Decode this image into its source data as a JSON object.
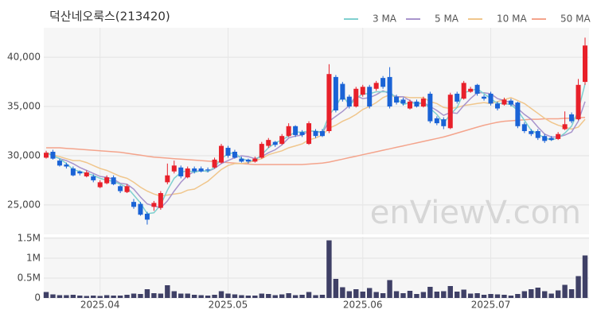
{
  "chart_data": {
    "type": "candlestick",
    "title": "덕산네오룩스(213420)",
    "watermark": "enViewV.com",
    "categories": [
      null,
      null,
      null,
      null,
      null,
      null,
      null,
      null,
      "2025.04",
      null,
      null,
      null,
      null,
      null,
      null,
      null,
      null,
      null,
      null,
      null,
      null,
      null,
      null,
      null,
      null,
      null,
      null,
      "2025.05",
      null,
      null,
      null,
      null,
      null,
      null,
      null,
      null,
      null,
      null,
      null,
      null,
      null,
      null,
      null,
      null,
      null,
      null,
      null,
      "2025.06",
      null,
      null,
      null,
      null,
      null,
      null,
      null,
      null,
      null,
      null,
      null,
      null,
      null,
      null,
      null,
      null,
      null,
      null,
      "2025.07",
      null,
      null,
      null,
      null,
      null,
      null,
      null,
      null,
      null,
      null,
      null,
      null,
      null,
      null
    ],
    "open": [
      29800,
      30400,
      29500,
      29100,
      28700,
      28400,
      27900,
      27900,
      26800,
      27200,
      27800,
      26900,
      26300,
      25300,
      25100,
      24100,
      24800,
      24700,
      27300,
      28400,
      28800,
      27800,
      28700,
      28700,
      28600,
      28800,
      29300,
      30800,
      30400,
      29700,
      29600,
      29400,
      29800,
      31000,
      31400,
      31200,
      32000,
      33000,
      32400,
      31200,
      32500,
      32500,
      32500,
      38000,
      37300,
      36000,
      35000,
      36200,
      37000,
      36800,
      37900,
      38000,
      36000,
      35700,
      34800,
      35500,
      35000,
      36300,
      33800,
      33700,
      32800,
      36300,
      35800,
      36500,
      37200,
      36000,
      36300,
      35300,
      35200,
      35600,
      35400,
      33200,
      32500,
      32500,
      32000,
      31800,
      31700,
      32700,
      34200,
      33700,
      37500
    ],
    "high": [
      30500,
      30600,
      29700,
      29300,
      28900,
      28500,
      28500,
      28100,
      27500,
      28000,
      28000,
      27000,
      27100,
      25600,
      25300,
      24300,
      25400,
      26400,
      29200,
      29500,
      29000,
      28900,
      28900,
      28900,
      28800,
      29800,
      31200,
      31000,
      30600,
      29900,
      29700,
      29900,
      31400,
      31800,
      31500,
      32200,
      33300,
      33100,
      32600,
      33500,
      32700,
      32700,
      39300,
      38200,
      37500,
      36200,
      37000,
      37200,
      37200,
      37600,
      38100,
      39000,
      36200,
      35900,
      35700,
      35700,
      36000,
      36500,
      34000,
      33900,
      36400,
      36500,
      37600,
      37000,
      37300,
      36200,
      36500,
      35500,
      35900,
      35800,
      35500,
      33400,
      32700,
      32700,
      32200,
      32000,
      32400,
      34500,
      34400,
      37800,
      42000
    ],
    "low": [
      29700,
      29600,
      28900,
      28700,
      27900,
      28000,
      27800,
      27300,
      26700,
      27100,
      27000,
      26200,
      26200,
      24600,
      23900,
      23000,
      24400,
      24500,
      27100,
      28200,
      27700,
      27700,
      28200,
      28300,
      28300,
      28700,
      29200,
      29800,
      29700,
      29300,
      29200,
      29300,
      29700,
      30800,
      30900,
      31100,
      31900,
      31900,
      31900,
      31100,
      31800,
      31900,
      32300,
      34400,
      35500,
      34800,
      34900,
      36000,
      34800,
      36600,
      36800,
      34800,
      35200,
      35100,
      34700,
      34900,
      34900,
      33300,
      33100,
      32700,
      32700,
      35300,
      35700,
      36400,
      36100,
      35600,
      35100,
      34600,
      35100,
      35000,
      32800,
      32300,
      32000,
      31600,
      31300,
      31500,
      31600,
      32600,
      33300,
      33600,
      37200
    ],
    "close": [
      30300,
      29700,
      29000,
      28900,
      28000,
      28200,
      28300,
      27500,
      27300,
      27800,
      27100,
      26400,
      26900,
      24800,
      24000,
      23500,
      25200,
      26200,
      28000,
      29000,
      27900,
      28700,
      28400,
      28400,
      28500,
      29600,
      31000,
      30000,
      29800,
      29400,
      29400,
      29700,
      31200,
      31600,
      31100,
      32000,
      33000,
      32100,
      32100,
      33300,
      32000,
      32000,
      38300,
      34600,
      35700,
      35000,
      36800,
      37000,
      35000,
      37400,
      37000,
      35000,
      35400,
      35300,
      35500,
      35000,
      35800,
      33500,
      33300,
      33000,
      36200,
      35500,
      37400,
      36800,
      36300,
      35800,
      35300,
      34800,
      35700,
      35200,
      33000,
      32500,
      32200,
      31800,
      31500,
      31600,
      32200,
      33200,
      33500,
      37200,
      41200
    ],
    "up_color": "#e8202a",
    "down_color": "#1a63d6",
    "series": [
      {
        "name": "3 MA",
        "color": "#7fd0cf",
        "values": [
          30300,
          30000,
          29700,
          29200,
          28600,
          28400,
          28200,
          28000,
          27700,
          27500,
          27400,
          27100,
          26800,
          26000,
          25200,
          24100,
          24200,
          25000,
          26500,
          27700,
          28300,
          28500,
          28300,
          28500,
          28400,
          28800,
          29700,
          30200,
          30300,
          29700,
          29500,
          29500,
          30100,
          30800,
          31300,
          31600,
          32000,
          32400,
          32400,
          32500,
          32500,
          32400,
          34100,
          35000,
          36200,
          35100,
          35800,
          36300,
          36300,
          36500,
          36500,
          36500,
          35800,
          35200,
          35400,
          35300,
          35400,
          34800,
          34200,
          33300,
          34200,
          34900,
          36400,
          36600,
          36800,
          36300,
          35800,
          35300,
          35300,
          35200,
          34600,
          33600,
          32600,
          32200,
          31800,
          31600,
          31800,
          32300,
          33000,
          34600,
          37300
        ]
      },
      {
        "name": "5 MA",
        "color": "#a894cc",
        "values": [
          30300,
          30000,
          29700,
          29500,
          29200,
          28800,
          28500,
          28200,
          27900,
          27800,
          27600,
          27200,
          27100,
          26600,
          25800,
          25100,
          24900,
          24700,
          25400,
          26400,
          27300,
          28000,
          28400,
          28500,
          28400,
          28700,
          29200,
          29500,
          29800,
          30000,
          29900,
          29700,
          29900,
          30300,
          30600,
          31100,
          31800,
          32000,
          32100,
          32500,
          32500,
          32300,
          33500,
          34000,
          34500,
          35100,
          36100,
          35800,
          35900,
          36200,
          36600,
          36300,
          36000,
          36000,
          35600,
          35200,
          35400,
          35000,
          34600,
          34100,
          34400,
          34300,
          35100,
          35800,
          36400,
          36400,
          36300,
          35800,
          35600,
          35400,
          34800,
          34200,
          33700,
          32900,
          32200,
          31900,
          31900,
          32100,
          32400,
          33500,
          35500
        ]
      },
      {
        "name": "10 MA",
        "color": "#f0c68c",
        "values": [
          30300,
          30100,
          29900,
          29700,
          29500,
          29500,
          29300,
          29000,
          28700,
          28500,
          28200,
          27900,
          27700,
          27300,
          26800,
          26400,
          26100,
          25900,
          26000,
          26100,
          26200,
          26500,
          26600,
          27000,
          27400,
          28000,
          28600,
          29000,
          29200,
          29200,
          29300,
          29500,
          29700,
          30100,
          30300,
          30500,
          30800,
          31000,
          31200,
          31600,
          31800,
          32100,
          32800,
          33100,
          33500,
          33800,
          34200,
          34700,
          35000,
          35400,
          35900,
          36200,
          35900,
          36000,
          35900,
          35900,
          35900,
          35500,
          35300,
          34900,
          34800,
          34900,
          35100,
          35200,
          35300,
          35400,
          35300,
          35500,
          35700,
          35900,
          35600,
          35300,
          34800,
          34300,
          33800,
          33400,
          33100,
          32900,
          32700,
          32900,
          33700
        ]
      },
      {
        "name": "50 MA",
        "color": "#f4a48c",
        "values": [
          30800,
          30800,
          30800,
          30750,
          30700,
          30650,
          30600,
          30550,
          30500,
          30450,
          30400,
          30350,
          30250,
          30150,
          30050,
          29950,
          29850,
          29800,
          29750,
          29700,
          29650,
          29600,
          29550,
          29500,
          29450,
          29400,
          29350,
          29300,
          29250,
          29200,
          29150,
          29100,
          29100,
          29100,
          29100,
          29100,
          29100,
          29100,
          29100,
          29150,
          29200,
          29250,
          29350,
          29500,
          29650,
          29800,
          29950,
          30100,
          30250,
          30400,
          30550,
          30700,
          30850,
          31000,
          31150,
          31300,
          31450,
          31600,
          31750,
          31900,
          32100,
          32300,
          32500,
          32700,
          32900,
          33100,
          33250,
          33400,
          33500,
          33550,
          33600,
          33650,
          33700,
          33700,
          33750,
          33750,
          33750,
          33800,
          33800,
          33850,
          33900
        ]
      }
    ],
    "ylim": [
      22000,
      43000
    ],
    "yticks": [
      {
        "value": 25000,
        "label": "25,000"
      },
      {
        "value": 30000,
        "label": "30,000"
      },
      {
        "value": 35000,
        "label": "35,000"
      },
      {
        "value": 40000,
        "label": "40,000"
      }
    ],
    "grid": true,
    "legend": "top-right",
    "volume": {
      "color": "#3f4066",
      "values": [
        150000,
        90000,
        70000,
        70000,
        80000,
        60000,
        50000,
        60000,
        50000,
        70000,
        60000,
        60000,
        80000,
        110000,
        100000,
        220000,
        120000,
        110000,
        320000,
        170000,
        110000,
        110000,
        80000,
        70000,
        60000,
        80000,
        170000,
        110000,
        90000,
        70000,
        60000,
        60000,
        110000,
        100000,
        70000,
        90000,
        120000,
        70000,
        80000,
        150000,
        70000,
        80000,
        1450000,
        480000,
        270000,
        170000,
        220000,
        160000,
        250000,
        150000,
        120000,
        450000,
        170000,
        120000,
        180000,
        100000,
        150000,
        280000,
        160000,
        170000,
        300000,
        160000,
        210000,
        110000,
        120000,
        80000,
        100000,
        90000,
        80000,
        60000,
        100000,
        170000,
        220000,
        260000,
        170000,
        110000,
        190000,
        330000,
        220000,
        550000,
        1070000
      ],
      "ylim": [
        0,
        1500000
      ],
      "yticks": [
        0,
        {
          "value": 500000,
          "label": "0.5M"
        },
        {
          "value": 1000000,
          "label": "1M"
        },
        {
          "value": 1500000,
          "label": "1.5M"
        }
      ]
    }
  }
}
